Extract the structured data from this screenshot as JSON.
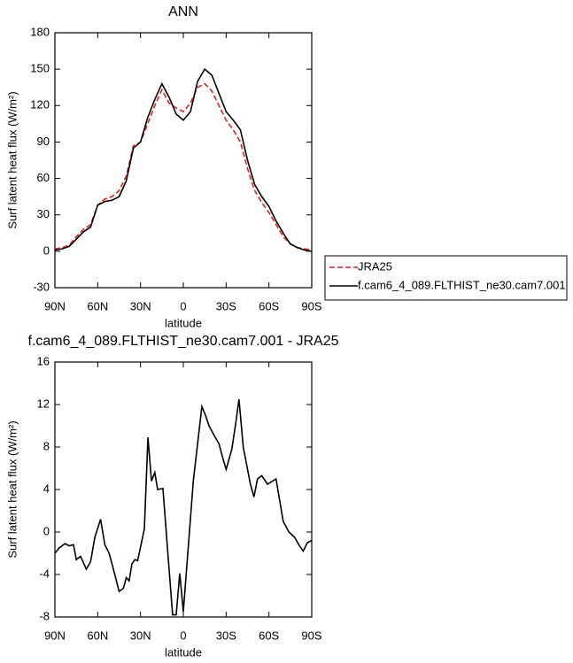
{
  "chart_data": [
    {
      "type": "line",
      "title": "ANN",
      "xlabel": "latitude",
      "ylabel": "Surf latent heat flux (W/m²)",
      "x": [
        90,
        85,
        80,
        75,
        70,
        65,
        60,
        55,
        50,
        45,
        40,
        35,
        30,
        25,
        20,
        15,
        10,
        5,
        0,
        -5,
        -10,
        -15,
        -20,
        -25,
        -30,
        -35,
        -40,
        -45,
        -50,
        -55,
        -60,
        -65,
        -70,
        -75,
        -80,
        -85,
        -90
      ],
      "series": [
        {
          "name": "JRA25",
          "color": "#e8201e",
          "style": "dashed",
          "values": [
            2,
            3,
            5,
            12,
            18,
            22,
            38,
            43,
            45,
            50,
            62,
            87,
            90,
            105,
            120,
            133,
            122,
            118,
            115,
            122,
            135,
            138,
            132,
            120,
            108,
            100,
            90,
            68,
            50,
            40,
            32,
            22,
            12,
            6,
            3,
            2,
            1
          ]
        },
        {
          "name": "f.cam6_4_089.FLTHIST_ne30.cam7.001",
          "color": "#000000",
          "style": "solid",
          "values": [
            1,
            2,
            4,
            10,
            16,
            20,
            38,
            41,
            42,
            45,
            58,
            85,
            90,
            110,
            125,
            138,
            127,
            113,
            108,
            115,
            140,
            150,
            145,
            130,
            115,
            108,
            100,
            75,
            55,
            45,
            37,
            25,
            15,
            6,
            3,
            1,
            0
          ]
        }
      ],
      "xlim": [
        90,
        -90
      ],
      "xticks": [
        {
          "value": 90,
          "label": "90N"
        },
        {
          "value": 60,
          "label": "60N"
        },
        {
          "value": 30,
          "label": "30N"
        },
        0,
        {
          "value": -30,
          "label": "30S"
        },
        {
          "value": -60,
          "label": "60S"
        },
        {
          "value": -90,
          "label": "90S"
        }
      ],
      "ylim": [
        -30,
        180
      ],
      "yticks": [
        -30,
        0,
        30,
        60,
        90,
        120,
        150,
        180
      ],
      "legend": "right"
    },
    {
      "type": "line",
      "title": "f.cam6_4_089.FLTHIST_ne30.cam7.001 - JRA25",
      "xlabel": "latitude",
      "ylabel": "Surf latent heat flux (W/m²)",
      "x": [
        90,
        87,
        83,
        80,
        77,
        75,
        72,
        68,
        65,
        62,
        58,
        55,
        52,
        49,
        45,
        42,
        40,
        38,
        36,
        34,
        32,
        27.3,
        24.8,
        22.3,
        20,
        18,
        14.3,
        10.5,
        7.5,
        5,
        2.5,
        0,
        -7,
        -13,
        -15.5,
        -18,
        -22,
        -25,
        -28,
        -30,
        -34,
        -37,
        -39,
        -42,
        -47,
        -49.5,
        -52,
        -55,
        -59,
        -65,
        -70,
        -74,
        -78,
        -81,
        -84,
        -87,
        -90
      ],
      "color": "#000000",
      "values": [
        -2,
        -1.5,
        -1.1,
        -1.3,
        -1.2,
        -2.6,
        -2.3,
        -3.5,
        -2.8,
        -0.5,
        1.2,
        -1.2,
        -2,
        -3.5,
        -5.6,
        -5.3,
        -4.3,
        -4.6,
        -3,
        -2.6,
        -2.7,
        0.3,
        8.9,
        4.8,
        5.6,
        4,
        4.1,
        -2.6,
        -7.8,
        -7.8,
        -3.9,
        -7.5,
        4.8,
        11.8,
        11,
        10,
        9,
        8.3,
        6.8,
        5.9,
        7.8,
        10.5,
        12.5,
        8,
        4.5,
        3.3,
        5,
        5.3,
        4.5,
        5,
        1,
        0,
        -0.5,
        -1.2,
        -1.8,
        -1,
        -0.8
      ],
      "xlim": [
        90,
        -90
      ],
      "xticks": [
        {
          "value": 90,
          "label": "90N"
        },
        {
          "value": 60,
          "label": "60N"
        },
        {
          "value": 30,
          "label": "30N"
        },
        0,
        {
          "value": -30,
          "label": "30S"
        },
        {
          "value": -60,
          "label": "60S"
        },
        {
          "value": -90,
          "label": "90S"
        }
      ],
      "ylim": [
        -8,
        16
      ],
      "yticks": [
        -8,
        -4,
        0,
        4,
        8,
        12,
        16
      ]
    }
  ]
}
